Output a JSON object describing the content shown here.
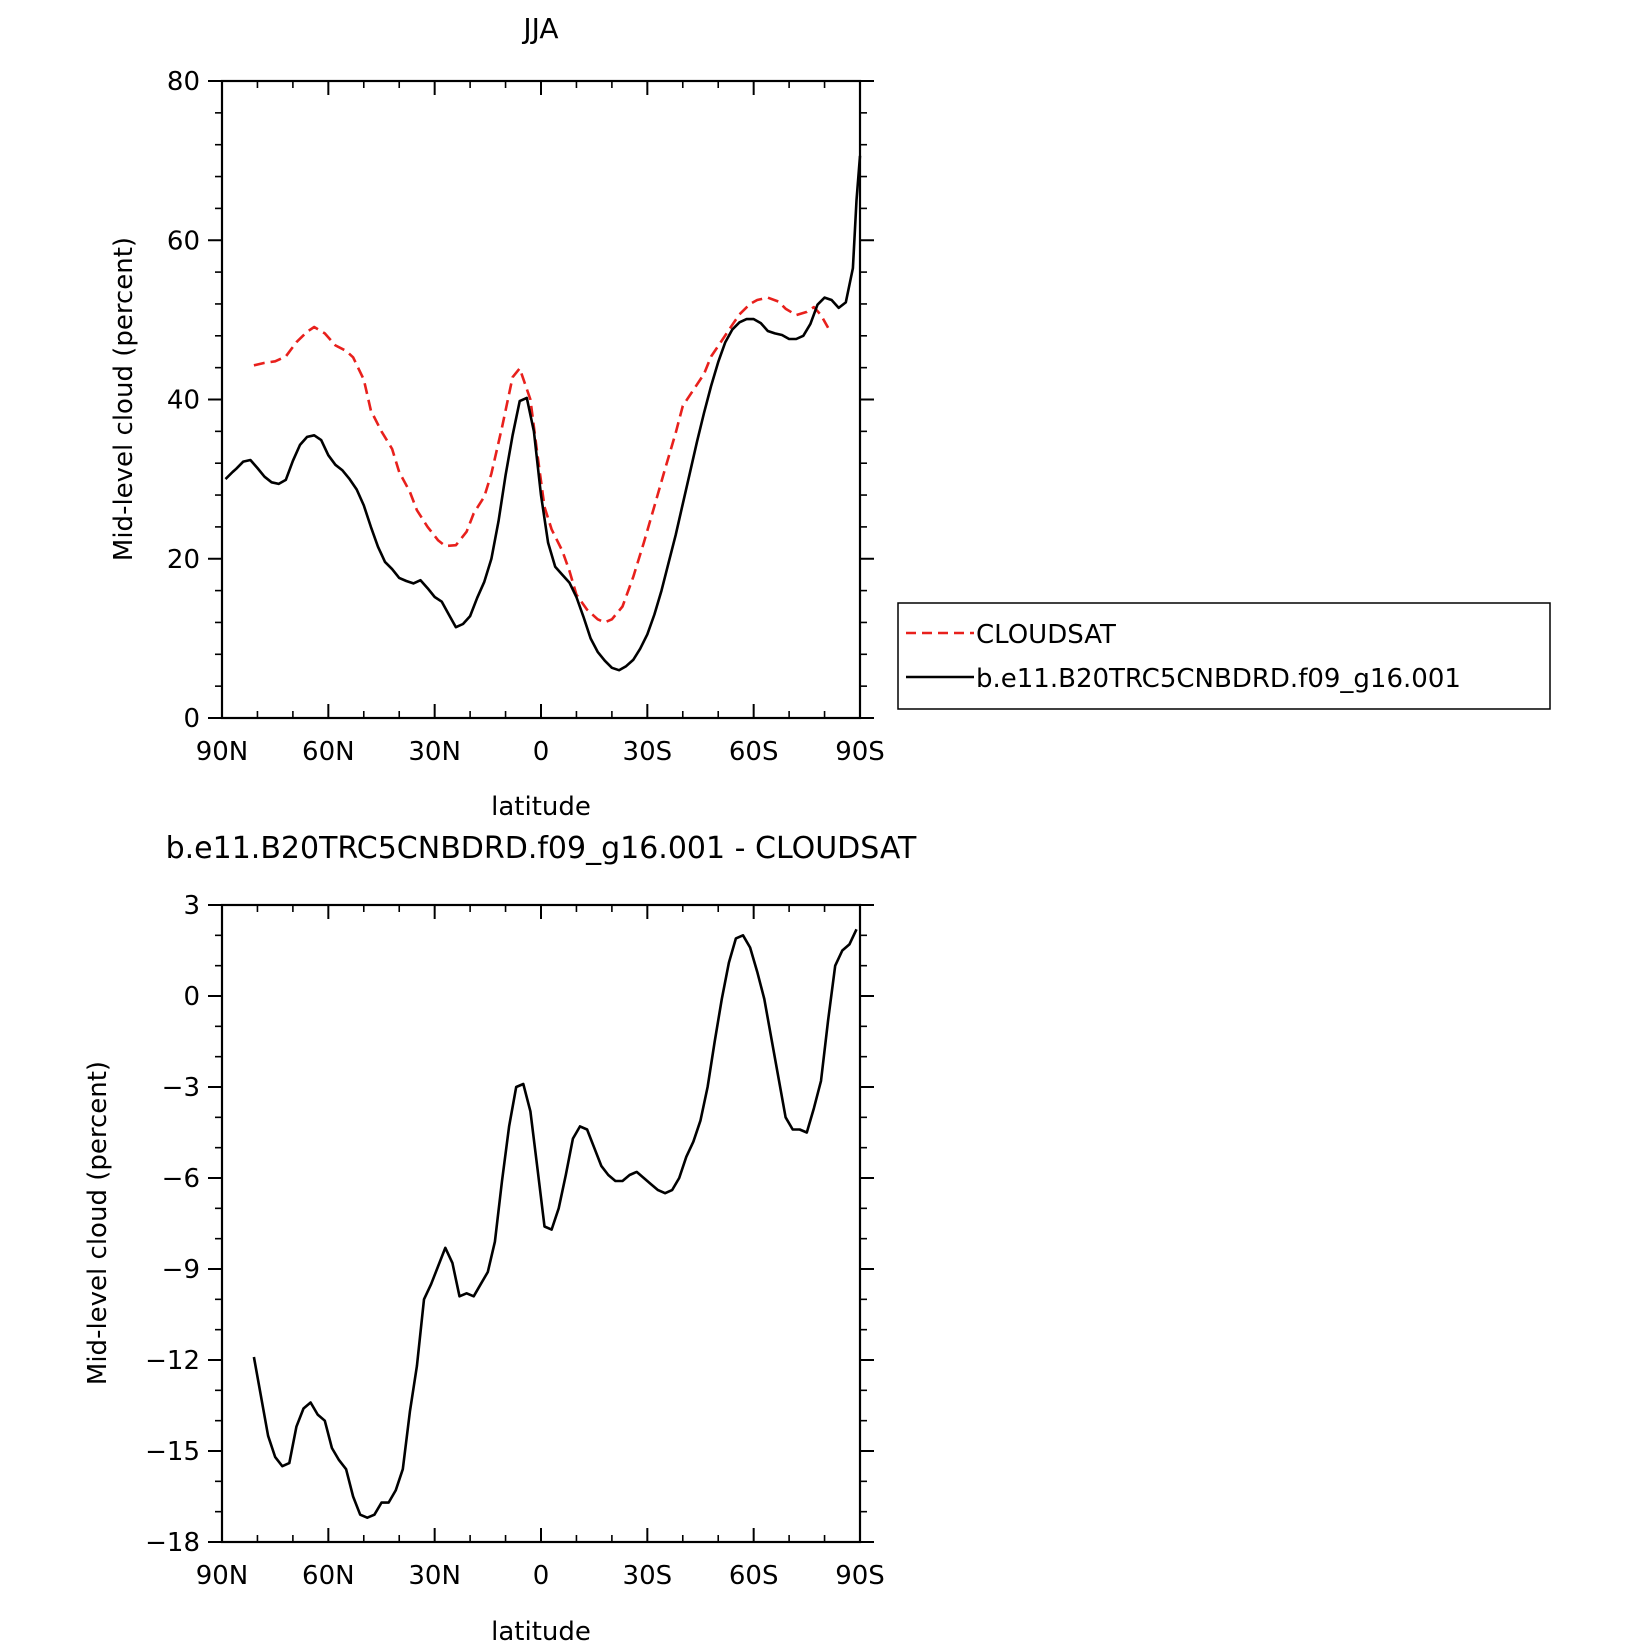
{
  "chart_data": [
    {
      "type": "line",
      "title": "JJA",
      "xlabel": "latitude",
      "ylabel": "Mid-level cloud (percent)",
      "xlim": [
        90,
        -90
      ],
      "ylim": [
        0,
        80
      ],
      "x_ticks": [
        {
          "value": 90,
          "label": "90N"
        },
        {
          "value": 60,
          "label": "60N"
        },
        {
          "value": 30,
          "label": "30N"
        },
        {
          "value": 0,
          "label": "0"
        },
        {
          "value": -30,
          "label": "30S"
        },
        {
          "value": -60,
          "label": "60S"
        },
        {
          "value": -90,
          "label": "90S"
        }
      ],
      "y_ticks": [
        0,
        20,
        40,
        60,
        80
      ],
      "grid": false,
      "legend_position": "right",
      "series": [
        {
          "name": "CLOUDSAT",
          "color": "#e8201c",
          "dash": "dashed",
          "points": [
            [
              81,
              44.3
            ],
            [
              78,
              44.6
            ],
            [
              75,
              44.8
            ],
            [
              72,
              45.4
            ],
            [
              69,
              47.2
            ],
            [
              66,
              48.5
            ],
            [
              64,
              49.1
            ],
            [
              61,
              48.3
            ],
            [
              58,
              46.8
            ],
            [
              55,
              46.1
            ],
            [
              53,
              45.3
            ],
            [
              50,
              42.5
            ],
            [
              48,
              38.6
            ],
            [
              45,
              36.0
            ],
            [
              42,
              33.8
            ],
            [
              40,
              30.9
            ],
            [
              37,
              28.4
            ],
            [
              35,
              26.1
            ],
            [
              32,
              24.0
            ],
            [
              29,
              22.3
            ],
            [
              27,
              21.6
            ],
            [
              24,
              21.7
            ],
            [
              21,
              23.4
            ],
            [
              19,
              25.7
            ],
            [
              16,
              27.8
            ],
            [
              14,
              30.7
            ],
            [
              11,
              36.5
            ],
            [
              8,
              42.8
            ],
            [
              6,
              43.9
            ],
            [
              3,
              40.0
            ],
            [
              1,
              33.0
            ],
            [
              -1,
              26.5
            ],
            [
              -3,
              23.7
            ],
            [
              -6,
              21.0
            ],
            [
              -8,
              18.5
            ],
            [
              -10,
              15.5
            ],
            [
              -13,
              13.6
            ],
            [
              -16,
              12.4
            ],
            [
              -18,
              12.0
            ],
            [
              -20,
              12.4
            ],
            [
              -23,
              14.0
            ],
            [
              -26,
              17.7
            ],
            [
              -29,
              22.0
            ],
            [
              -32,
              26.6
            ],
            [
              -35,
              31.3
            ],
            [
              -38,
              35.8
            ],
            [
              -40,
              39.2
            ],
            [
              -43,
              41.2
            ],
            [
              -46,
              43.2
            ],
            [
              -48,
              45.4
            ],
            [
              -51,
              47.4
            ],
            [
              -54,
              49.4
            ],
            [
              -56,
              50.7
            ],
            [
              -59,
              52.0
            ],
            [
              -61,
              52.5
            ],
            [
              -64,
              52.8
            ],
            [
              -67,
              52.3
            ],
            [
              -69,
              51.4
            ],
            [
              -72,
              50.6
            ],
            [
              -75,
              51.0
            ],
            [
              -77,
              51.6
            ],
            [
              -79,
              50.6
            ],
            [
              -81,
              49.0
            ]
          ]
        },
        {
          "name": "b.e11.B20TRC5CNBDRD.f09_g16.001",
          "color": "#000000",
          "dash": "solid",
          "points": [
            [
              89,
              30.0
            ],
            [
              87,
              30.9
            ],
            [
              86,
              31.3
            ],
            [
              84,
              32.2
            ],
            [
              82,
              32.4
            ],
            [
              80,
              31.4
            ],
            [
              78,
              30.3
            ],
            [
              76,
              29.6
            ],
            [
              74,
              29.4
            ],
            [
              72,
              29.9
            ],
            [
              70,
              32.3
            ],
            [
              68,
              34.3
            ],
            [
              66,
              35.3
            ],
            [
              64,
              35.5
            ],
            [
              62,
              34.9
            ],
            [
              60,
              33.0
            ],
            [
              58,
              31.8
            ],
            [
              56,
              31.1
            ],
            [
              54,
              30.0
            ],
            [
              52,
              28.7
            ],
            [
              50,
              26.7
            ],
            [
              48,
              24.0
            ],
            [
              46,
              21.5
            ],
            [
              44,
              19.6
            ],
            [
              42,
              18.7
            ],
            [
              40,
              17.6
            ],
            [
              38,
              17.2
            ],
            [
              36,
              16.9
            ],
            [
              34,
              17.3
            ],
            [
              32,
              16.3
            ],
            [
              30,
              15.2
            ],
            [
              28,
              14.6
            ],
            [
              26,
              13.0
            ],
            [
              24,
              11.4
            ],
            [
              22,
              11.8
            ],
            [
              20,
              12.8
            ],
            [
              18,
              15.1
            ],
            [
              16,
              17.1
            ],
            [
              14,
              20.0
            ],
            [
              12,
              24.7
            ],
            [
              10,
              30.5
            ],
            [
              8,
              35.5
            ],
            [
              6,
              39.8
            ],
            [
              4,
              40.2
            ],
            [
              2,
              36.0
            ],
            [
              0,
              28.0
            ],
            [
              -2,
              22.0
            ],
            [
              -4,
              19.0
            ],
            [
              -6,
              18.0
            ],
            [
              -8,
              17.0
            ],
            [
              -10,
              15.2
            ],
            [
              -12,
              12.7
            ],
            [
              -14,
              10.0
            ],
            [
              -16,
              8.3
            ],
            [
              -18,
              7.2
            ],
            [
              -20,
              6.3
            ],
            [
              -22,
              6.0
            ],
            [
              -24,
              6.5
            ],
            [
              -26,
              7.3
            ],
            [
              -28,
              8.7
            ],
            [
              -30,
              10.5
            ],
            [
              -32,
              13.0
            ],
            [
              -34,
              16.0
            ],
            [
              -36,
              19.5
            ],
            [
              -38,
              23.0
            ],
            [
              -40,
              26.9
            ],
            [
              -42,
              30.8
            ],
            [
              -44,
              34.7
            ],
            [
              -46,
              38.3
            ],
            [
              -48,
              41.7
            ],
            [
              -50,
              44.7
            ],
            [
              -52,
              47.2
            ],
            [
              -54,
              48.8
            ],
            [
              -56,
              49.7
            ],
            [
              -58,
              50.1
            ],
            [
              -60,
              50.1
            ],
            [
              -62,
              49.6
            ],
            [
              -64,
              48.6
            ],
            [
              -66,
              48.3
            ],
            [
              -68,
              48.1
            ],
            [
              -70,
              47.6
            ],
            [
              -72,
              47.6
            ],
            [
              -74,
              48.0
            ],
            [
              -76,
              49.5
            ],
            [
              -78,
              51.9
            ],
            [
              -80,
              52.8
            ],
            [
              -82,
              52.5
            ],
            [
              -84,
              51.5
            ],
            [
              -86,
              52.2
            ],
            [
              -88,
              56.5
            ],
            [
              -89,
              65.0
            ],
            [
              -90,
              70.6
            ]
          ]
        }
      ]
    },
    {
      "type": "line",
      "title": "b.e11.B20TRC5CNBDRD.f09_g16.001 - CLOUDSAT",
      "xlabel": "latitude",
      "ylabel": "Mid-level cloud (percent)",
      "xlim": [
        90,
        -90
      ],
      "ylim": [
        -18,
        3
      ],
      "x_ticks": [
        {
          "value": 90,
          "label": "90N"
        },
        {
          "value": 60,
          "label": "60N"
        },
        {
          "value": 30,
          "label": "30N"
        },
        {
          "value": 0,
          "label": "0"
        },
        {
          "value": -30,
          "label": "30S"
        },
        {
          "value": -60,
          "label": "60S"
        },
        {
          "value": -90,
          "label": "90S"
        }
      ],
      "y_ticks": [
        3,
        0,
        -3,
        -6,
        -9,
        -12,
        -15,
        -18
      ],
      "grid": false,
      "series": [
        {
          "color": "#000000",
          "dash": "solid",
          "points": [
            [
              81,
              -11.9
            ],
            [
              79,
              -13.2
            ],
            [
              77,
              -14.5
            ],
            [
              75,
              -15.2
            ],
            [
              73,
              -15.5
            ],
            [
              71,
              -15.4
            ],
            [
              69,
              -14.2
            ],
            [
              67,
              -13.6
            ],
            [
              65,
              -13.4
            ],
            [
              63,
              -13.8
            ],
            [
              61,
              -14.0
            ],
            [
              59,
              -14.9
            ],
            [
              57,
              -15.3
            ],
            [
              55,
              -15.6
            ],
            [
              53,
              -16.5
            ],
            [
              51,
              -17.1
            ],
            [
              49,
              -17.2
            ],
            [
              47,
              -17.1
            ],
            [
              45,
              -16.7
            ],
            [
              43,
              -16.7
            ],
            [
              41,
              -16.3
            ],
            [
              39,
              -15.6
            ],
            [
              37,
              -13.7
            ],
            [
              35,
              -12.2
            ],
            [
              33,
              -10.0
            ],
            [
              31,
              -9.5
            ],
            [
              29,
              -8.9
            ],
            [
              27,
              -8.3
            ],
            [
              25,
              -8.8
            ],
            [
              23,
              -9.9
            ],
            [
              21,
              -9.8
            ],
            [
              19,
              -9.9
            ],
            [
              17,
              -9.5
            ],
            [
              15,
              -9.1
            ],
            [
              13,
              -8.1
            ],
            [
              11,
              -6.1
            ],
            [
              9,
              -4.3
            ],
            [
              7,
              -3.0
            ],
            [
              5,
              -2.9
            ],
            [
              3,
              -3.8
            ],
            [
              1,
              -5.7
            ],
            [
              -1,
              -7.6
            ],
            [
              -3,
              -7.7
            ],
            [
              -5,
              -7.0
            ],
            [
              -7,
              -5.9
            ],
            [
              -9,
              -4.7
            ],
            [
              -11,
              -4.3
            ],
            [
              -13,
              -4.4
            ],
            [
              -15,
              -5.0
            ],
            [
              -17,
              -5.6
            ],
            [
              -19,
              -5.9
            ],
            [
              -21,
              -6.1
            ],
            [
              -23,
              -6.1
            ],
            [
              -25,
              -5.9
            ],
            [
              -27,
              -5.8
            ],
            [
              -29,
              -6.0
            ],
            [
              -31,
              -6.2
            ],
            [
              -33,
              -6.4
            ],
            [
              -35,
              -6.5
            ],
            [
              -37,
              -6.4
            ],
            [
              -39,
              -6.0
            ],
            [
              -41,
              -5.3
            ],
            [
              -43,
              -4.8
            ],
            [
              -45,
              -4.1
            ],
            [
              -47,
              -3.0
            ],
            [
              -49,
              -1.5
            ],
            [
              -51,
              -0.1
            ],
            [
              -53,
              1.1
            ],
            [
              -55,
              1.9
            ],
            [
              -57,
              2.0
            ],
            [
              -59,
              1.6
            ],
            [
              -61,
              0.8
            ],
            [
              -63,
              -0.1
            ],
            [
              -65,
              -1.4
            ],
            [
              -67,
              -2.7
            ],
            [
              -69,
              -4.0
            ],
            [
              -71,
              -4.4
            ],
            [
              -73,
              -4.4
            ],
            [
              -75,
              -4.5
            ],
            [
              -77,
              -3.7
            ],
            [
              -79,
              -2.8
            ],
            [
              -81,
              -0.8
            ],
            [
              -83,
              1.0
            ],
            [
              -85,
              1.5
            ],
            [
              -87,
              1.7
            ],
            [
              -89,
              2.2
            ]
          ]
        }
      ]
    }
  ]
}
